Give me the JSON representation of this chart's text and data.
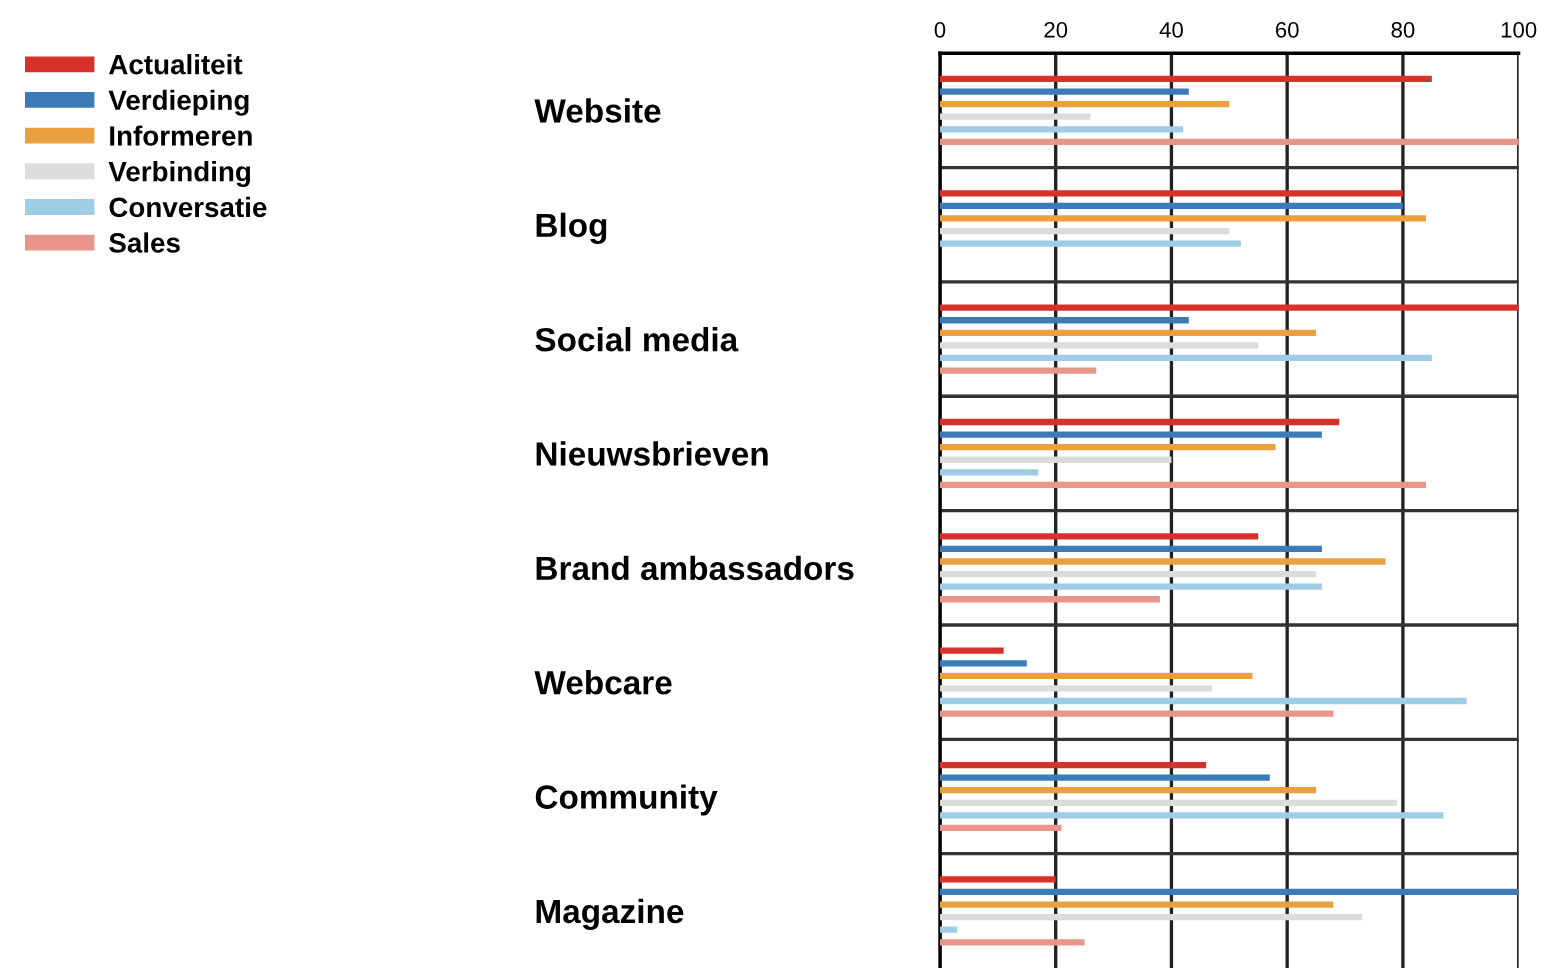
{
  "chart_data": {
    "type": "bar",
    "orientation": "horizontal",
    "categories": [
      "Website",
      "Blog",
      "Social media",
      "Nieuwsbrieven",
      "Brand ambassadors",
      "Webcare",
      "Community",
      "Magazine"
    ],
    "series": [
      {
        "name": "Actualiteit",
        "color": "#d6322b",
        "values": [
          85,
          80,
          100,
          69,
          55,
          11,
          46,
          20
        ]
      },
      {
        "name": "Verdieping",
        "color": "#3d7ab8",
        "values": [
          43,
          80,
          43,
          66,
          66,
          15,
          57,
          100
        ]
      },
      {
        "name": "Informeren",
        "color": "#eba040",
        "values": [
          50,
          84,
          65,
          58,
          77,
          54,
          65,
          68
        ]
      },
      {
        "name": "Verbinding",
        "color": "#dcdcdc",
        "values": [
          26,
          50,
          55,
          40,
          65,
          47,
          79,
          73
        ]
      },
      {
        "name": "Conversatie",
        "color": "#9fcde6",
        "values": [
          42,
          52,
          85,
          17,
          66,
          91,
          87,
          3
        ]
      },
      {
        "name": "Sales",
        "color": "#e8958c",
        "values": [
          100,
          null,
          27,
          84,
          38,
          68,
          21,
          25
        ]
      }
    ],
    "xlim": [
      0,
      100
    ],
    "xticks": [
      0,
      20,
      40,
      60,
      80,
      100
    ],
    "grid": true,
    "legend": "top left"
  }
}
